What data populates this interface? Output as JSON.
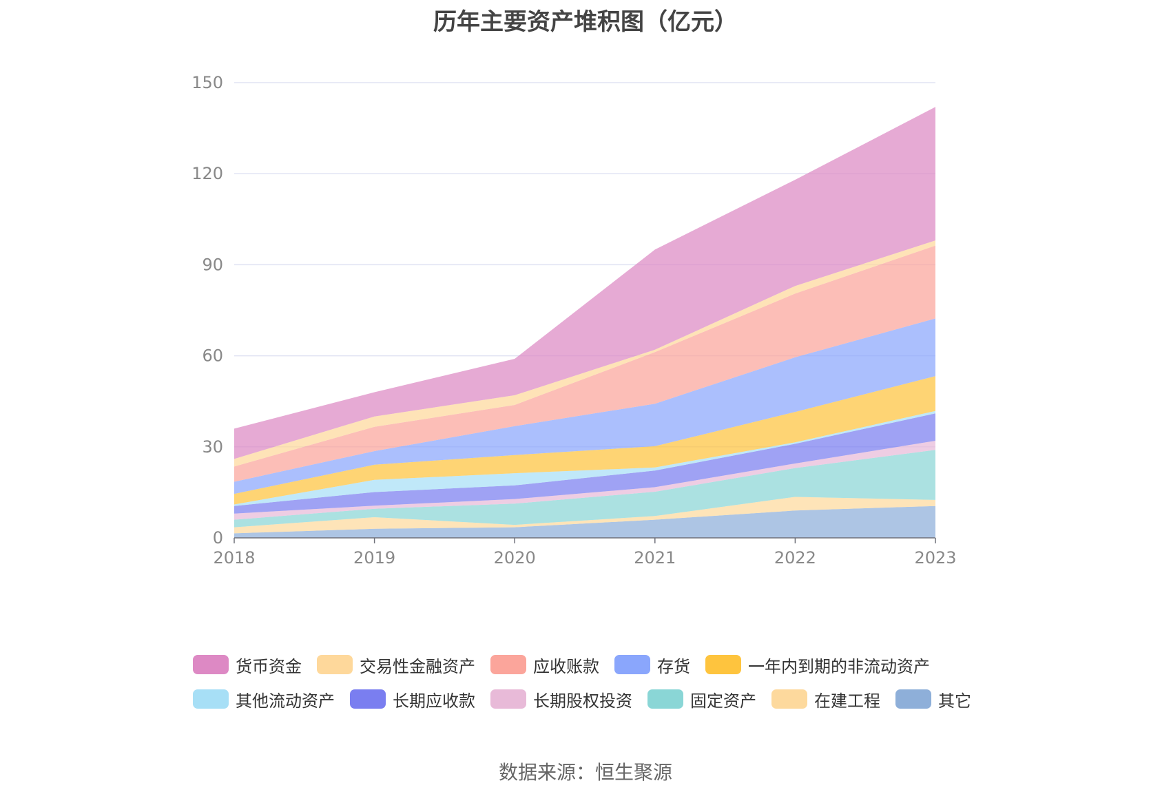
{
  "chart_data": {
    "type": "area",
    "stacked": true,
    "title": "历年主要资产堆积图（亿元）",
    "x": [
      "2018",
      "2019",
      "2020",
      "2021",
      "2022",
      "2023"
    ],
    "yticks": [
      "0",
      "30",
      "60",
      "90",
      "120",
      "150"
    ],
    "ylim": [
      0,
      150
    ],
    "grid": true,
    "legend_position": "bottom",
    "series": [
      {
        "name": "其它",
        "color": "#8eafd9",
        "values": [
          1.5,
          3,
          3.5,
          6,
          9,
          10.5
        ]
      },
      {
        "name": "在建工程",
        "color": "#fdd99d",
        "values": [
          2,
          3.8,
          0.8,
          1.2,
          4.5,
          2
        ]
      },
      {
        "name": "固定资产",
        "color": "#8ad6d6",
        "values": [
          2.5,
          2.8,
          7,
          8,
          9.5,
          16.5
        ]
      },
      {
        "name": "长期股权投资",
        "color": "#e8bad8",
        "values": [
          2,
          1,
          1.5,
          1.5,
          1.5,
          3
        ]
      },
      {
        "name": "长期应收款",
        "color": "#7a7ef0",
        "values": [
          2.5,
          4.5,
          4.5,
          5.5,
          6.5,
          9
        ]
      },
      {
        "name": "其他流动资产",
        "color": "#a7dff6",
        "values": [
          0.5,
          4,
          4,
          1,
          0.5,
          0.8
        ]
      },
      {
        "name": "一年内到期的非流动资产",
        "color": "#fec43e",
        "values": [
          3.5,
          5,
          6,
          7,
          10,
          11.5
        ]
      },
      {
        "name": "存货",
        "color": "#8aa6fc",
        "values": [
          4,
          4.5,
          9.5,
          14,
          18,
          19
        ]
      },
      {
        "name": "应收账款",
        "color": "#fba59b",
        "values": [
          5,
          8,
          7,
          17,
          21,
          24
        ]
      },
      {
        "name": "交易性金融资产",
        "color": "#fed89b",
        "values": [
          2.5,
          3.4,
          3.2,
          0.8,
          2.5,
          1.7
        ]
      },
      {
        "name": "货币资金",
        "color": "#dd89c4",
        "values": [
          10,
          8,
          12,
          33,
          35,
          44
        ]
      }
    ]
  },
  "legend_order": [
    "货币资金",
    "交易性金融资产",
    "应收账款",
    "存货",
    "一年内到期的非流动资产",
    "其他流动资产",
    "长期应收款",
    "长期股权投资",
    "固定资产",
    "在建工程",
    "其它"
  ],
  "source": "数据来源：恒生聚源"
}
